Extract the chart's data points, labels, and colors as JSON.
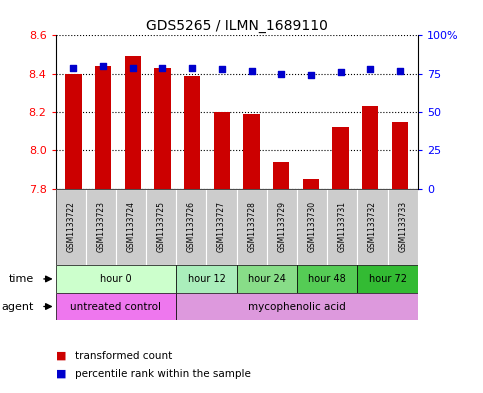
{
  "title": "GDS5265 / ILMN_1689110",
  "samples": [
    "GSM1133722",
    "GSM1133723",
    "GSM1133724",
    "GSM1133725",
    "GSM1133726",
    "GSM1133727",
    "GSM1133728",
    "GSM1133729",
    "GSM1133730",
    "GSM1133731",
    "GSM1133732",
    "GSM1133733"
  ],
  "bar_values": [
    8.4,
    8.44,
    8.49,
    8.43,
    8.39,
    8.2,
    8.19,
    7.94,
    7.85,
    8.12,
    8.23,
    8.15
  ],
  "dot_values": [
    79,
    80,
    79,
    79,
    79,
    78,
    77,
    75,
    74,
    76,
    78,
    77
  ],
  "bar_color": "#cc0000",
  "dot_color": "#0000cc",
  "ymin": 7.8,
  "ymax": 8.6,
  "y2min": 0,
  "y2max": 100,
  "yticks": [
    7.8,
    8.0,
    8.2,
    8.4,
    8.6
  ],
  "y2ticks": [
    0,
    25,
    50,
    75,
    100
  ],
  "y2ticklabels": [
    "0",
    "25",
    "50",
    "75",
    "100%"
  ],
  "time_groups": [
    {
      "label": "hour 0",
      "start": 0,
      "end": 4,
      "color": "#ccffcc"
    },
    {
      "label": "hour 12",
      "start": 4,
      "end": 6,
      "color": "#aaeebb"
    },
    {
      "label": "hour 24",
      "start": 6,
      "end": 8,
      "color": "#88dd88"
    },
    {
      "label": "hour 48",
      "start": 8,
      "end": 10,
      "color": "#55cc55"
    },
    {
      "label": "hour 72",
      "start": 10,
      "end": 12,
      "color": "#33bb33"
    }
  ],
  "agent_groups": [
    {
      "label": "untreated control",
      "start": 0,
      "end": 4,
      "color": "#ee77ee"
    },
    {
      "label": "mycophenolic acid",
      "start": 4,
      "end": 12,
      "color": "#dd99dd"
    }
  ],
  "sample_box_color": "#cccccc",
  "legend_bar_label": "transformed count",
  "legend_dot_label": "percentile rank within the sample",
  "bar_bottom": 7.8,
  "background_color": "#ffffff"
}
